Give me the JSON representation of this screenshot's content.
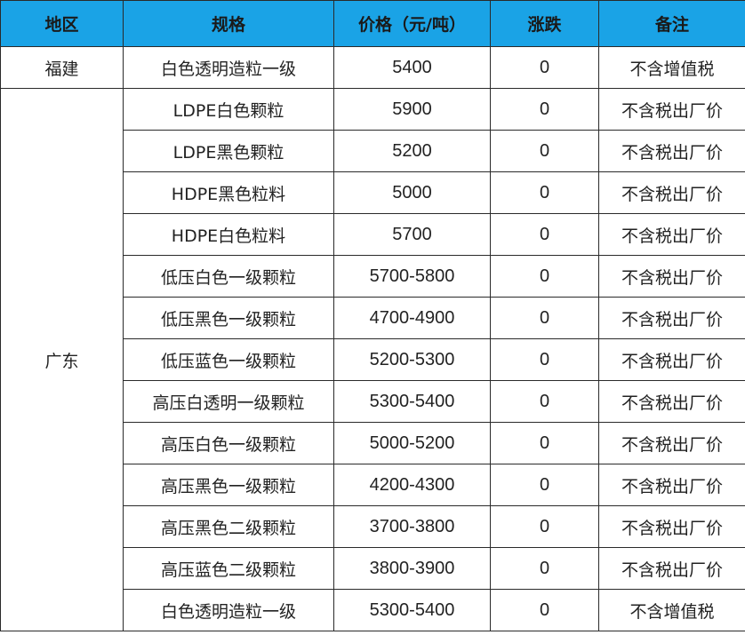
{
  "table": {
    "header": [
      "地区",
      "规格",
      "价格（元/吨）",
      "涨跌",
      "备注"
    ],
    "groups": [
      {
        "region": "福建",
        "rows": [
          [
            "白色透明造粒一级",
            5400,
            0,
            "不含增值税"
          ]
        ]
      },
      {
        "region": "广东",
        "rows": [
          [
            "LDPE白色颗粒",
            5900,
            0,
            "不含税出厂价"
          ],
          [
            "LDPE黑色颗粒",
            5200,
            0,
            "不含税出厂价"
          ],
          [
            "HDPE黑色粒料",
            5000,
            0,
            "不含税出厂价"
          ],
          [
            "HDPE白色粒料",
            5700,
            0,
            "不含税出厂价"
          ],
          [
            "低压白色一级颗粒",
            "5700-5800",
            0,
            "不含税出厂价"
          ],
          [
            "低压黑色一级颗粒",
            "4700-4900",
            0,
            "不含税出厂价"
          ],
          [
            "低压蓝色一级颗粒",
            "5200-5300",
            0,
            "不含税出厂价"
          ],
          [
            "高压白透明一级颗粒",
            "5300-5400",
            0,
            "不含税出厂价"
          ],
          [
            "高压白色一级颗粒",
            "5000-5200",
            0,
            "不含税出厂价"
          ],
          [
            "高压黑色一级颗粒",
            "4200-4300",
            0,
            "不含税出厂价"
          ],
          [
            "高压黑色二级颗粒",
            "3700-3800",
            0,
            "不含税出厂价"
          ],
          [
            "高压蓝色二级颗粒",
            "3800-3900",
            0,
            "不含税出厂价"
          ],
          [
            "白色透明造粒一级",
            "5300-5400",
            0,
            "不含增值税"
          ]
        ]
      }
    ]
  }
}
